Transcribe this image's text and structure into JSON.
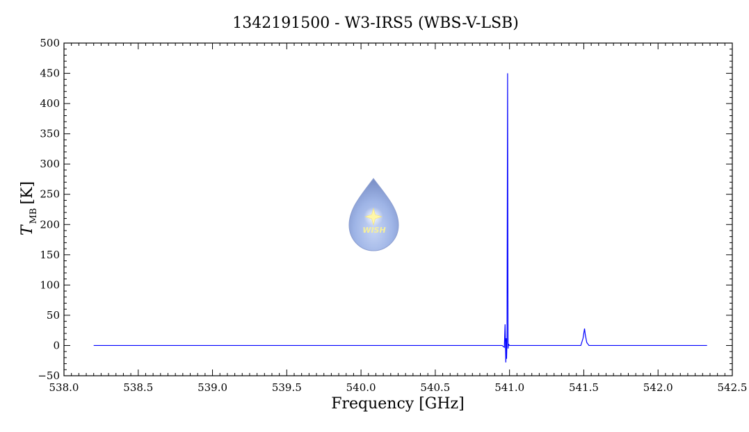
{
  "chart_data": {
    "type": "line",
    "title": "1342191500 - W3-IRS5 (WBS-V-LSB)",
    "xlabel": "Frequency [GHz]",
    "ylabel_main": "T",
    "ylabel_sub": "MB",
    "ylabel_unit": "[K]",
    "xlim": [
      538.0,
      542.5
    ],
    "ylim": [
      -50,
      500
    ],
    "x_ticks": [
      "538.0",
      "538.5",
      "539.0",
      "539.5",
      "540.0",
      "540.5",
      "541.0",
      "541.5",
      "542.0",
      "542.5"
    ],
    "y_ticks": [
      "−50",
      "0",
      "50",
      "100",
      "150",
      "200",
      "250",
      "300",
      "350",
      "400",
      "450",
      "500"
    ],
    "grid": false,
    "series": [
      {
        "color": "#0000ff",
        "x": [
          538.2,
          540.95,
          540.965,
          540.97,
          540.975,
          540.978,
          540.98,
          540.983,
          540.987,
          540.99,
          540.993,
          541.0,
          541.4,
          541.48,
          541.495,
          541.505,
          541.51,
          541.52,
          541.535,
          541.6,
          542.33
        ],
        "y": [
          0,
          0,
          -3,
          35,
          -28,
          12,
          -22,
          8,
          450,
          -5,
          2,
          0,
          0,
          0,
          12,
          28,
          18,
          5,
          0,
          0,
          0
        ]
      }
    ]
  },
  "logo": {
    "text": "WISH",
    "icon": "water-drop-star-icon"
  }
}
